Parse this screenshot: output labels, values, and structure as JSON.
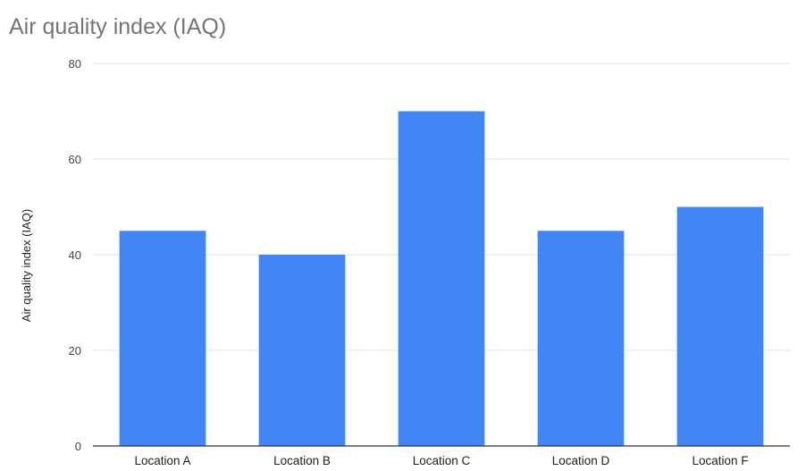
{
  "chart_data": {
    "type": "bar",
    "title": "Air quality index (IAQ)",
    "xlabel": "",
    "ylabel": "Air quality index (IAQ)",
    "categories": [
      "Location A",
      "Location B",
      "Location C",
      "Location D",
      "Location F"
    ],
    "values": [
      45,
      40,
      70,
      45,
      50
    ],
    "ylim": [
      0,
      80
    ],
    "yticks": [
      0,
      20,
      40,
      60,
      80
    ],
    "grid": true,
    "legend": "none",
    "colors": {
      "bar": "#4285f4",
      "grid": "#e0e0e0",
      "axis": "#333333",
      "title": "#757575"
    }
  }
}
